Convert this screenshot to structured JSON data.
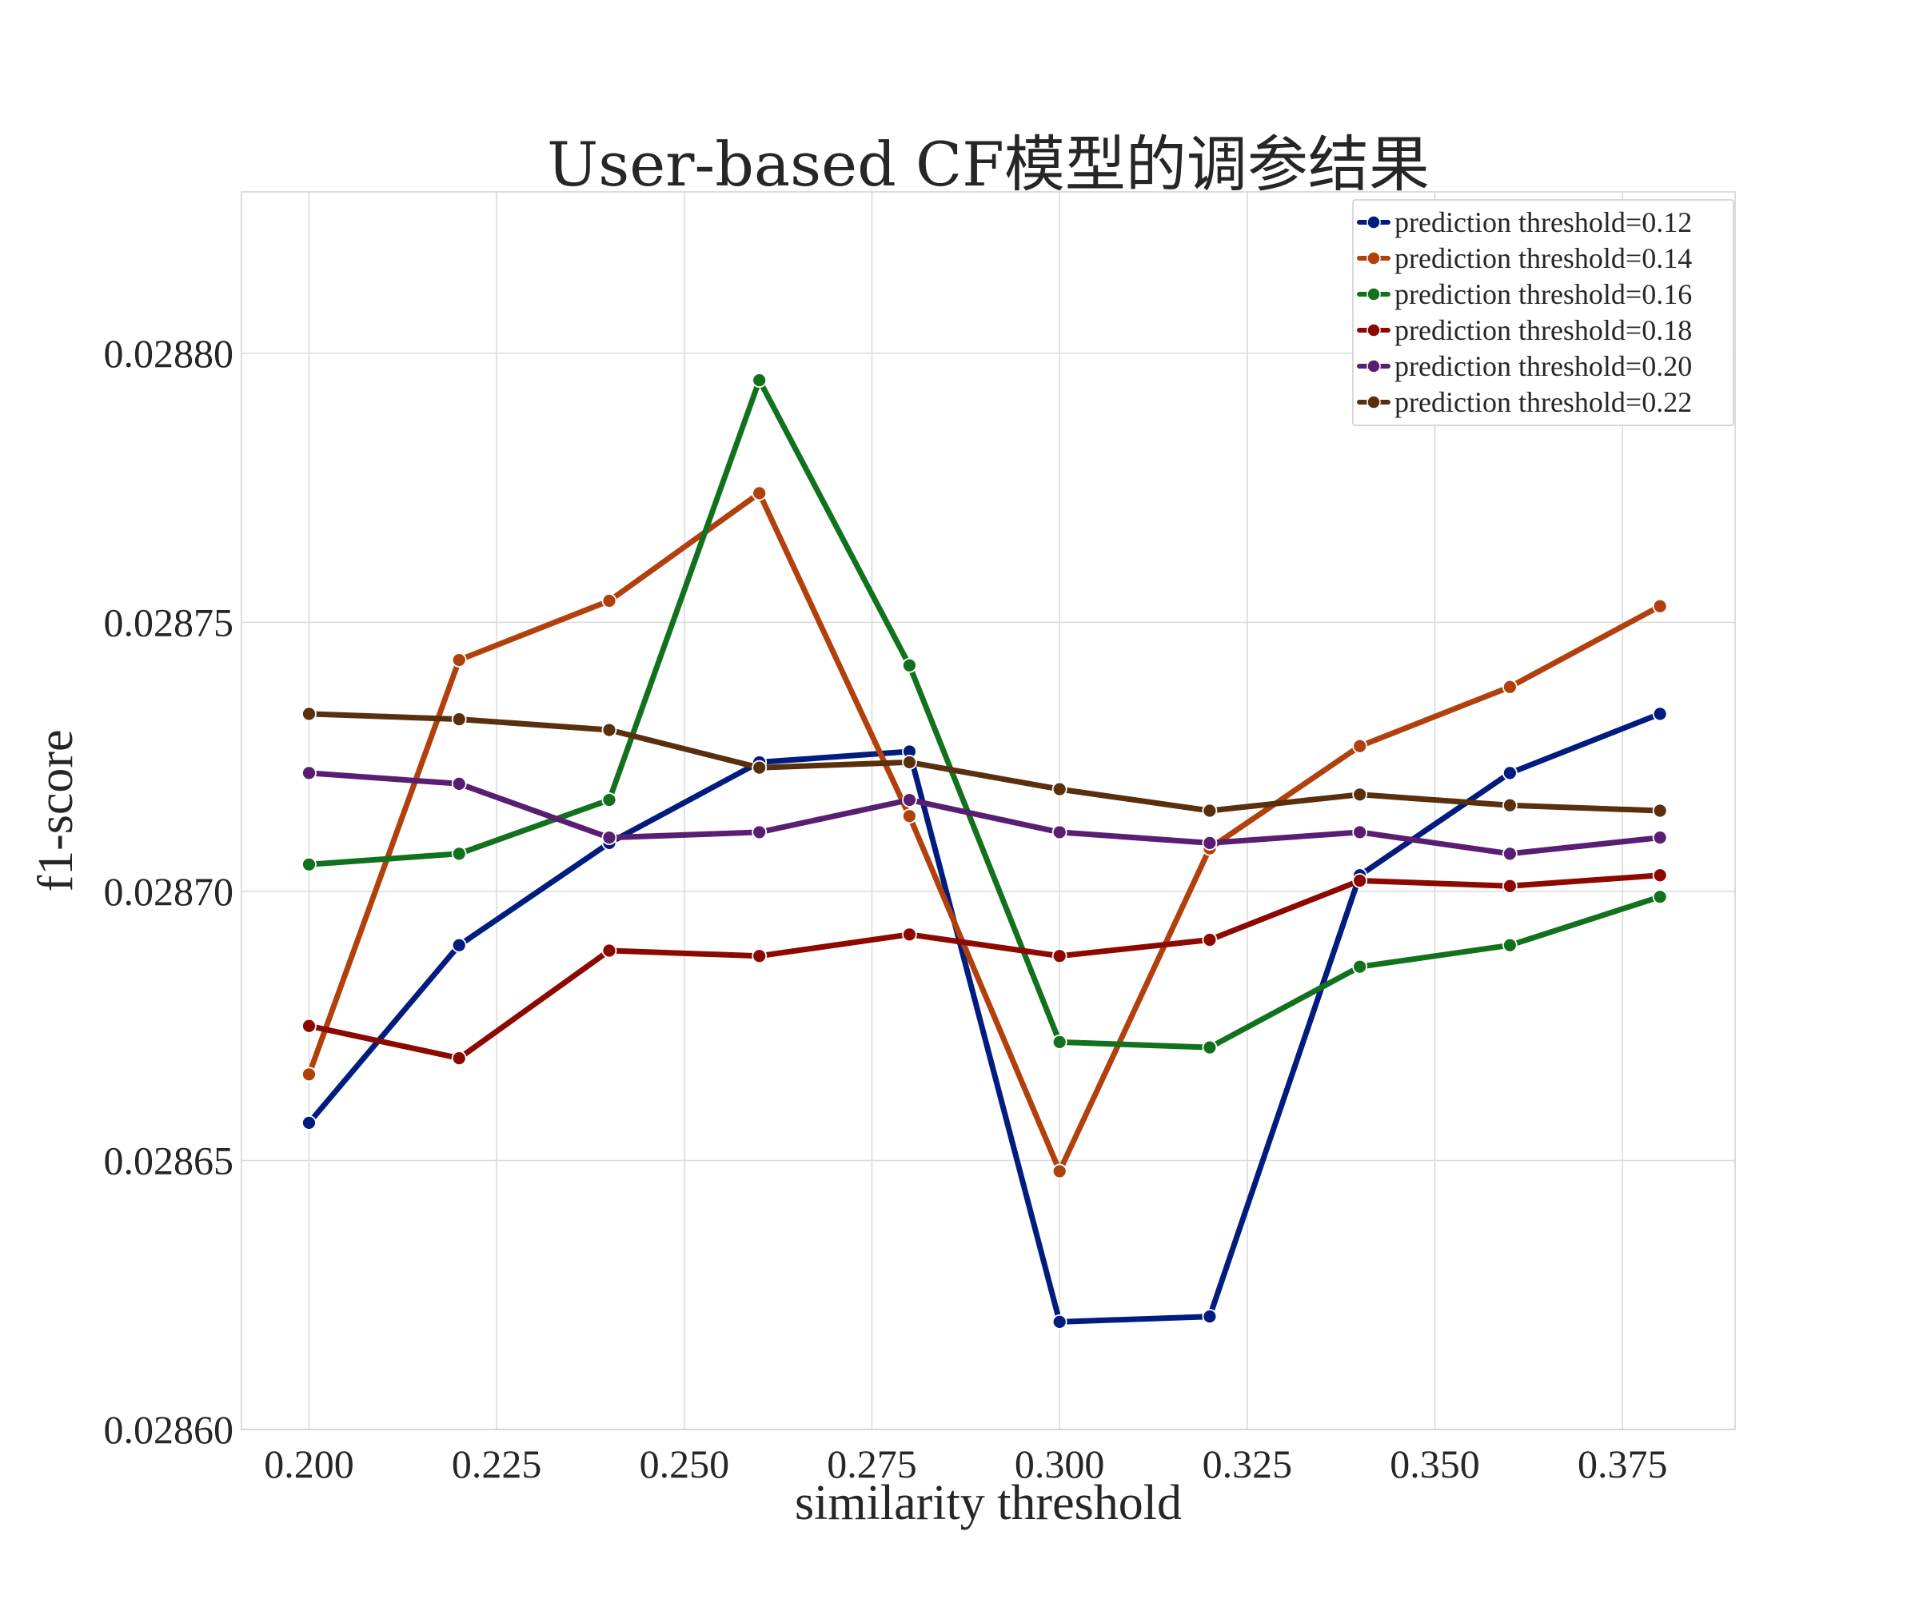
{
  "chart_data": {
    "type": "line",
    "title": "User-based CF模型的调参结果",
    "xlabel": "similarity threshold",
    "ylabel": "f1-score",
    "xlim": [
      0.191,
      0.39
    ],
    "ylim": [
      0.0286,
      0.02883
    ],
    "xticks": [
      0.2,
      0.225,
      0.25,
      0.275,
      0.3,
      0.325,
      0.35,
      0.375
    ],
    "xtick_labels": [
      "0.200",
      "0.225",
      "0.250",
      "0.275",
      "0.300",
      "0.325",
      "0.350",
      "0.375"
    ],
    "yticks": [
      0.0286,
      0.02865,
      0.0287,
      0.02875,
      0.0288
    ],
    "ytick_labels": [
      "0.02860",
      "0.02865",
      "0.02870",
      "0.02875",
      "0.02880"
    ],
    "grid": true,
    "legend_position": "top-right",
    "x": [
      0.2,
      0.22,
      0.24,
      0.26,
      0.28,
      0.3,
      0.32,
      0.34,
      0.36,
      0.38
    ],
    "series": [
      {
        "name": "prediction threshold=0.12",
        "color": "#001c7f",
        "values": [
          0.028657,
          0.02869,
          0.028709,
          0.028724,
          0.028726,
          0.02862,
          0.028621,
          0.028703,
          0.028722,
          0.028733
        ]
      },
      {
        "name": "prediction threshold=0.14",
        "color": "#b1400d",
        "values": [
          0.028666,
          0.028743,
          0.028754,
          0.028774,
          0.028714,
          0.028648,
          0.028708,
          0.028727,
          0.028738,
          0.028753
        ]
      },
      {
        "name": "prediction threshold=0.16",
        "color": "#12711c",
        "values": [
          0.028705,
          0.028707,
          0.028717,
          0.028795,
          0.028742,
          0.028672,
          0.028671,
          0.028686,
          0.02869,
          0.028699
        ]
      },
      {
        "name": "prediction threshold=0.18",
        "color": "#8c0800",
        "values": [
          0.028675,
          0.028669,
          0.028689,
          0.028688,
          0.028692,
          0.028688,
          0.028691,
          0.028702,
          0.028701,
          0.028703
        ]
      },
      {
        "name": "prediction threshold=0.20",
        "color": "#591e71",
        "values": [
          0.028722,
          0.02872,
          0.02871,
          0.028711,
          0.028717,
          0.028711,
          0.028709,
          0.028711,
          0.028707,
          0.02871
        ]
      },
      {
        "name": "prediction threshold=0.22",
        "color": "#592f0d",
        "values": [
          0.028733,
          0.028732,
          0.02873,
          0.028723,
          0.028724,
          0.028719,
          0.028715,
          0.028718,
          0.028716,
          0.028715
        ]
      }
    ]
  }
}
